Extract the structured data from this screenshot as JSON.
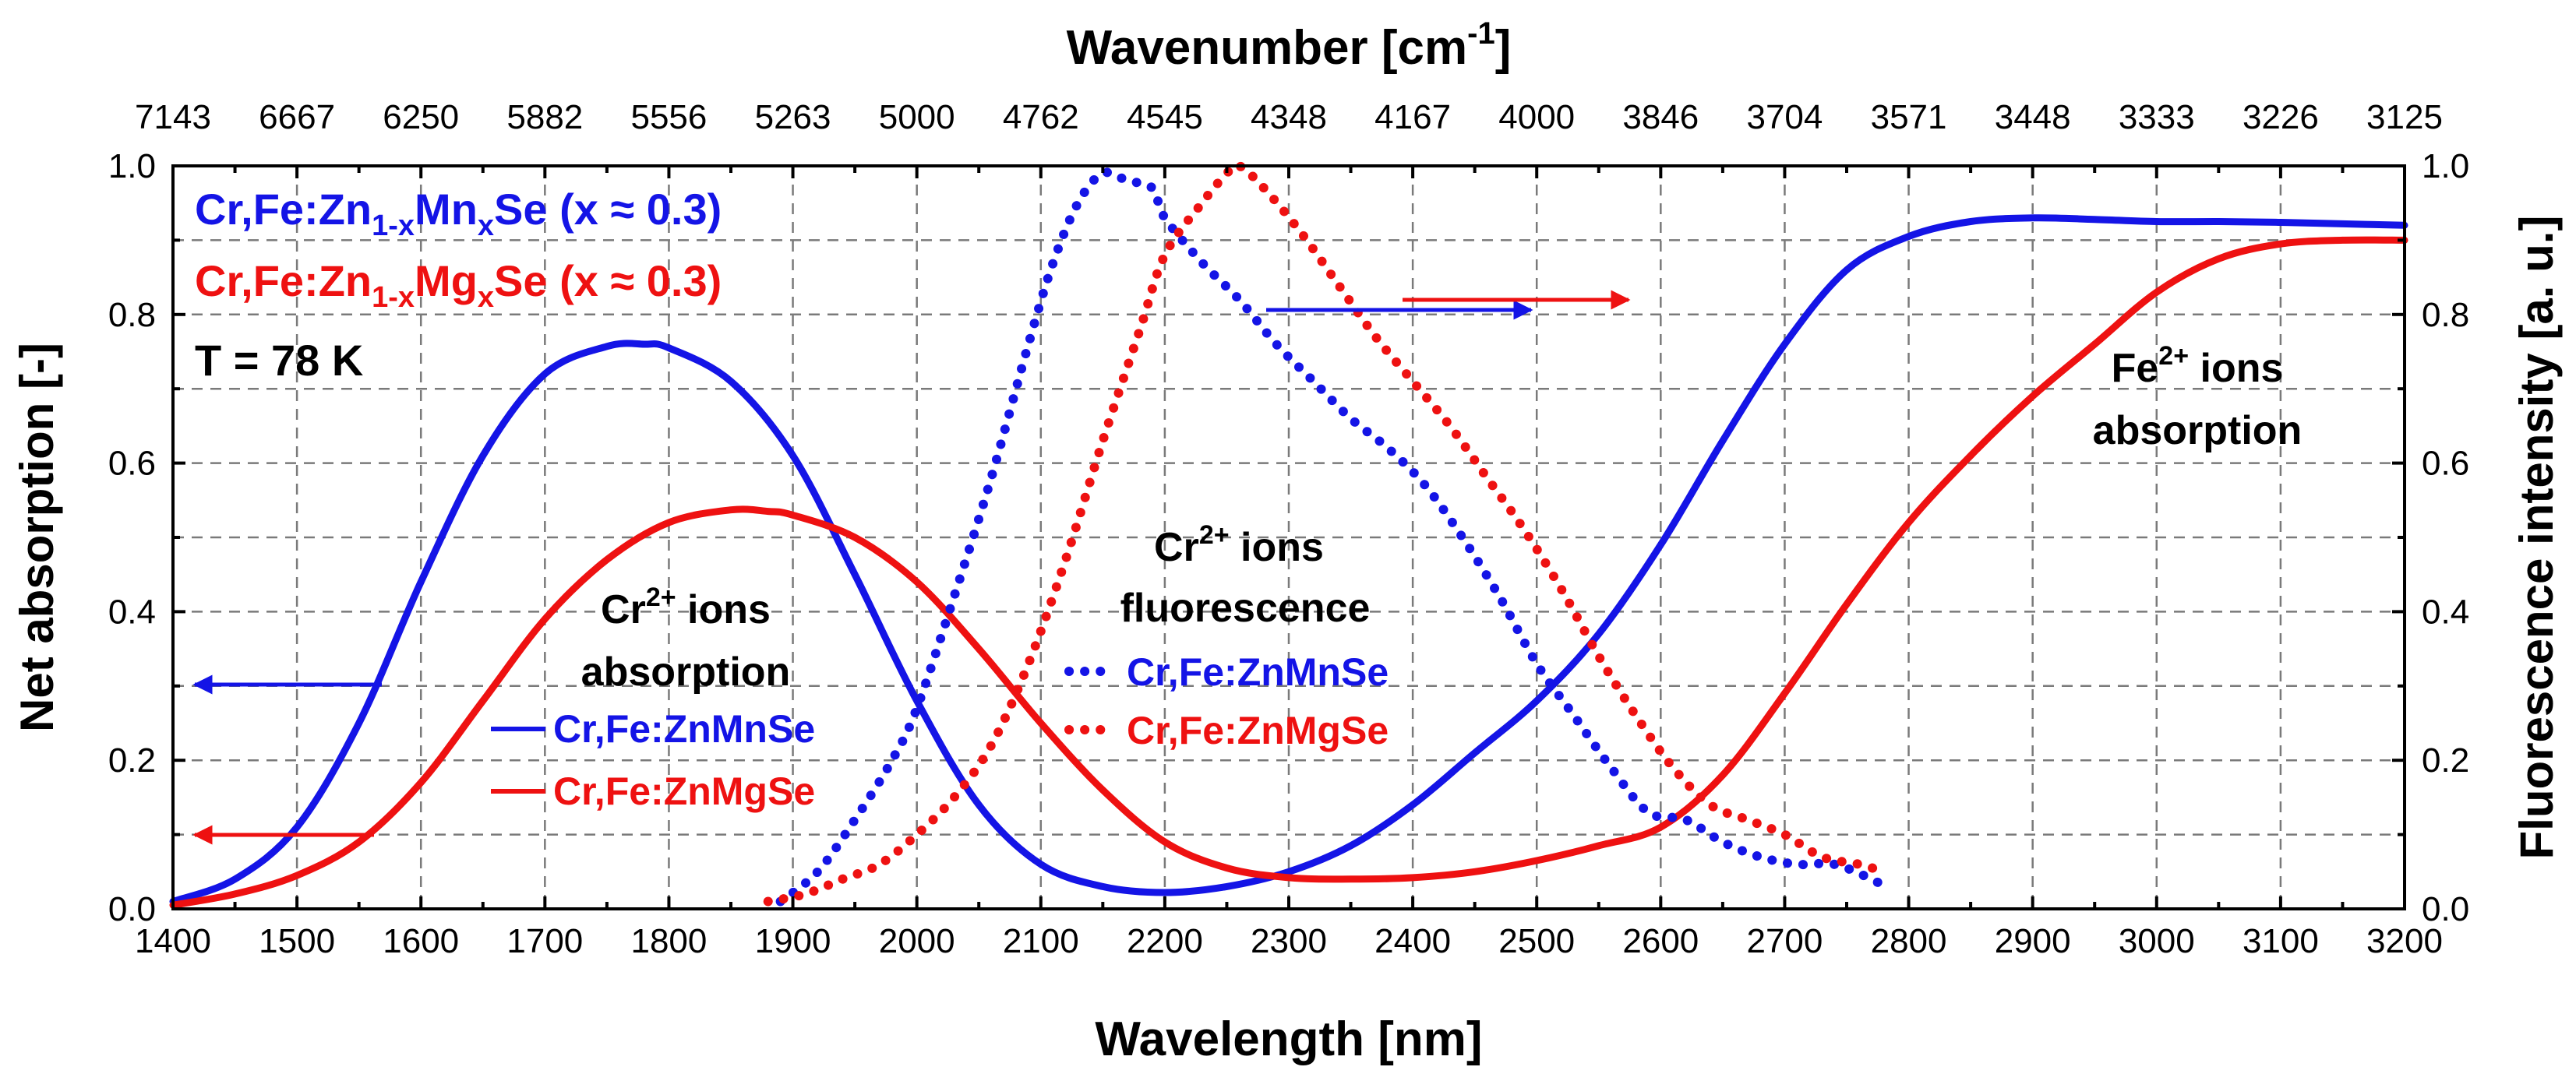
{
  "chart_data": {
    "type": "line",
    "x_axis": {
      "label": "Wavelength [nm]",
      "range": [
        1400,
        3200
      ],
      "ticks": [
        "1400",
        "1500",
        "1600",
        "1700",
        "1800",
        "1900",
        "2000",
        "2100",
        "2200",
        "2300",
        "2400",
        "2500",
        "2600",
        "2700",
        "2800",
        "2900",
        "3000",
        "3100",
        "3200"
      ]
    },
    "top_axis": {
      "label_main": "Wavenumber [cm",
      "label_sup": "-1",
      "label_end": "]",
      "ticks": [
        "7143",
        "6667",
        "6250",
        "5882",
        "5556",
        "5263",
        "5000",
        "4762",
        "4545",
        "4348",
        "4167",
        "4000",
        "3846",
        "3704",
        "3571",
        "3448",
        "3333",
        "3226",
        "3125"
      ]
    },
    "y_left": {
      "label": "Net absorption [-]",
      "range": [
        0,
        1
      ],
      "ticks": [
        "0.0",
        "0.2",
        "0.4",
        "0.6",
        "0.8",
        "1.0"
      ]
    },
    "y_right": {
      "label": "Fluorescence intensity [a. u.]",
      "range": [
        0,
        1
      ],
      "ticks": [
        "0.0",
        "0.2",
        "0.4",
        "0.6",
        "0.8",
        "1.0"
      ]
    },
    "colors": {
      "mn": "#1414e6",
      "mg": "#ee1111"
    },
    "legend_top": {
      "mn": {
        "a": "Cr,Fe:Zn",
        "b": "1-x",
        "c": "Mn",
        "d": "x",
        "e": "Se (x ≈ 0.3)"
      },
      "mg": {
        "a": "Cr,Fe:Zn",
        "b": "1-x",
        "c": "Mg",
        "d": "x",
        "e": "Se (x ≈ 0.3)"
      }
    },
    "temperature": "T = 78 K",
    "annotations": {
      "abs_title": {
        "a": "Cr",
        "b": "2+",
        "c": " ions",
        "d": "absorption"
      },
      "fl_title": {
        "a": "Cr",
        "b": "2+",
        "c": " ions",
        "d": "fluorescence"
      },
      "fe_title": {
        "a": "Fe",
        "b": "2+",
        "c": " ions",
        "d": "absorption"
      },
      "abs_mn": "Cr,Fe:ZnMnSe",
      "abs_mg": "Cr,Fe:ZnMgSe",
      "fl_mn": "Cr,Fe:ZnMnSe",
      "fl_mg": "Cr,Fe:ZnMgSe"
    },
    "series": [
      {
        "name": "Cr,Fe:ZnMnSe absorption",
        "axis": "left",
        "style": "solid",
        "color": "#1414e6",
        "x": [
          1400,
          1450,
          1500,
          1550,
          1600,
          1650,
          1700,
          1750,
          1780,
          1800,
          1850,
          1900,
          1950,
          2000,
          2050,
          2100,
          2150,
          2200,
          2250,
          2300,
          2350,
          2400,
          2450,
          2500,
          2550,
          2600,
          2650,
          2700,
          2750,
          2800,
          2850,
          2900,
          2950,
          3000,
          3050,
          3100,
          3150,
          3200
        ],
        "y": [
          0.01,
          0.04,
          0.11,
          0.25,
          0.44,
          0.61,
          0.72,
          0.757,
          0.76,
          0.755,
          0.71,
          0.61,
          0.45,
          0.28,
          0.14,
          0.06,
          0.03,
          0.022,
          0.03,
          0.05,
          0.085,
          0.14,
          0.21,
          0.28,
          0.37,
          0.49,
          0.63,
          0.76,
          0.86,
          0.905,
          0.925,
          0.93,
          0.928,
          0.925,
          0.925,
          0.924,
          0.922,
          0.92
        ]
      },
      {
        "name": "Cr,Fe:ZnMgSe absorption",
        "axis": "left",
        "style": "solid",
        "color": "#ee1111",
        "x": [
          1400,
          1450,
          1500,
          1550,
          1600,
          1650,
          1700,
          1750,
          1800,
          1850,
          1880,
          1900,
          1950,
          2000,
          2050,
          2100,
          2150,
          2200,
          2250,
          2300,
          2350,
          2400,
          2450,
          2500,
          2550,
          2600,
          2650,
          2700,
          2750,
          2800,
          2850,
          2900,
          2950,
          3000,
          3050,
          3100,
          3150,
          3200
        ],
        "y": [
          0.005,
          0.02,
          0.045,
          0.09,
          0.17,
          0.28,
          0.39,
          0.47,
          0.52,
          0.537,
          0.535,
          0.53,
          0.5,
          0.44,
          0.35,
          0.25,
          0.16,
          0.09,
          0.055,
          0.042,
          0.04,
          0.042,
          0.05,
          0.065,
          0.085,
          0.11,
          0.18,
          0.29,
          0.41,
          0.52,
          0.61,
          0.69,
          0.76,
          0.83,
          0.875,
          0.895,
          0.9,
          0.9
        ]
      },
      {
        "name": "Cr,Fe:ZnMnSe fluorescence",
        "axis": "right",
        "style": "dotted",
        "color": "#1414e6",
        "x": [
          1890,
          1920,
          1950,
          1980,
          2000,
          2030,
          2060,
          2090,
          2110,
          2130,
          2150,
          2170,
          2190,
          2200,
          2230,
          2260,
          2290,
          2320,
          2350,
          2380,
          2410,
          2440,
          2470,
          2500,
          2530,
          2560,
          2590,
          2620,
          2650,
          2680,
          2710,
          2740,
          2770,
          2780
        ],
        "y": [
          0.01,
          0.05,
          0.12,
          0.2,
          0.27,
          0.42,
          0.58,
          0.76,
          0.87,
          0.95,
          0.99,
          0.98,
          0.97,
          0.93,
          0.87,
          0.82,
          0.76,
          0.71,
          0.66,
          0.62,
          0.57,
          0.5,
          0.42,
          0.33,
          0.26,
          0.19,
          0.13,
          0.12,
          0.09,
          0.07,
          0.06,
          0.06,
          0.04,
          0.03
        ]
      },
      {
        "name": "Cr,Fe:ZnMgSe fluorescence",
        "axis": "right",
        "style": "dotted",
        "color": "#ee1111",
        "x": [
          1880,
          1910,
          1940,
          1970,
          2000,
          2030,
          2060,
          2090,
          2120,
          2150,
          2180,
          2200,
          2230,
          2250,
          2260,
          2280,
          2310,
          2340,
          2370,
          2400,
          2430,
          2460,
          2490,
          2520,
          2550,
          2580,
          2610,
          2640,
          2670,
          2700,
          2730,
          2760,
          2780
        ],
        "y": [
          0.01,
          0.02,
          0.04,
          0.06,
          0.1,
          0.15,
          0.22,
          0.33,
          0.47,
          0.63,
          0.78,
          0.88,
          0.95,
          0.99,
          1.0,
          0.97,
          0.91,
          0.84,
          0.77,
          0.71,
          0.65,
          0.58,
          0.51,
          0.43,
          0.34,
          0.26,
          0.19,
          0.14,
          0.12,
          0.1,
          0.07,
          0.06,
          0.05
        ]
      }
    ]
  }
}
